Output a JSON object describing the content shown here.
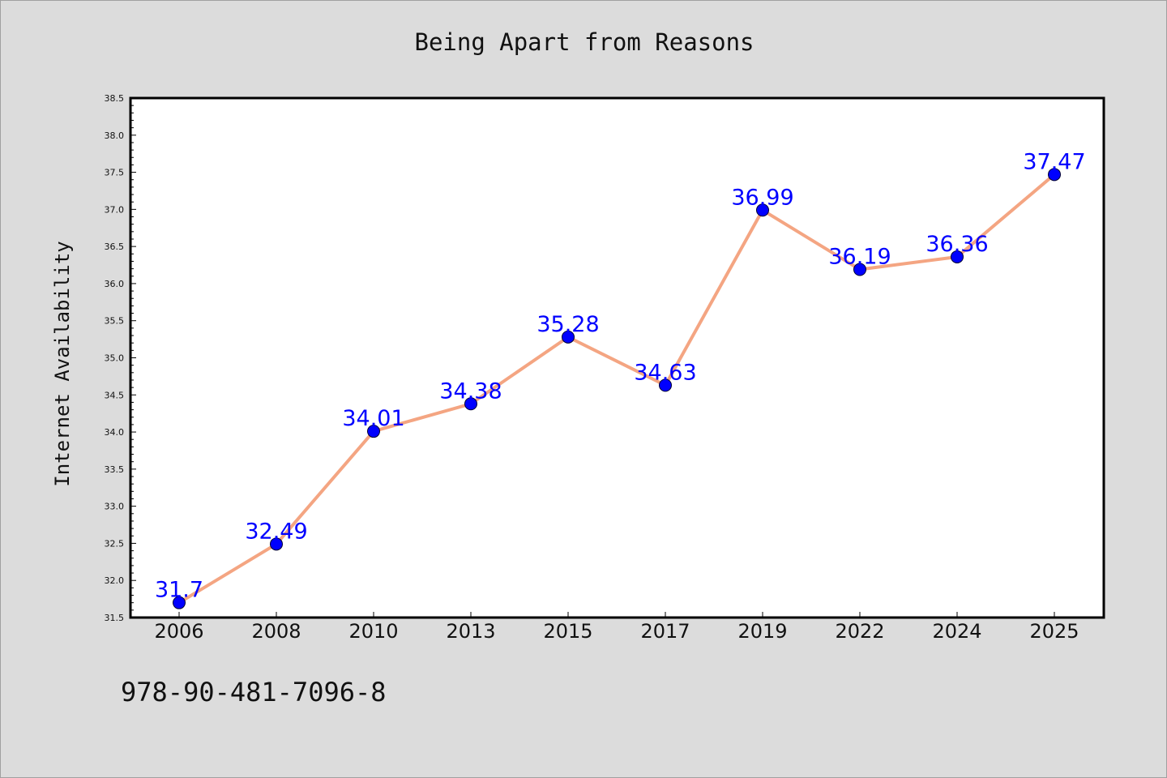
{
  "chart_data": {
    "type": "line",
    "title": "Being Apart from Reasons",
    "xlabel": "",
    "ylabel": "Internet Availability",
    "categories": [
      "2006",
      "2008",
      "2010",
      "2013",
      "2015",
      "2017",
      "2019",
      "2022",
      "2024",
      "2025"
    ],
    "series": [
      {
        "values": [
          31.7,
          32.49,
          34.01,
          34.38,
          35.28,
          34.63,
          36.99,
          36.19,
          36.36,
          37.47
        ],
        "labels": [
          "31.7",
          "32.49",
          "34.01",
          "34.38",
          "35.28",
          "34.63",
          "36.99",
          "36.19",
          "36.36",
          "37.47"
        ],
        "line_color": "#f4a582",
        "marker_color": "#0000ff"
      }
    ],
    "ylim": [
      31.5,
      38.5
    ],
    "yticks": [
      "31.5",
      "32.0",
      "32.5",
      "33.0",
      "33.5",
      "34.0",
      "34.5",
      "35.0",
      "35.5",
      "36.0",
      "36.5",
      "37.0",
      "37.5",
      "38.0",
      "38.5"
    ],
    "grid": false,
    "legend": "none",
    "label_color": "#0000ff"
  },
  "footer": {
    "isbn": "978-90-481-7096-8"
  }
}
